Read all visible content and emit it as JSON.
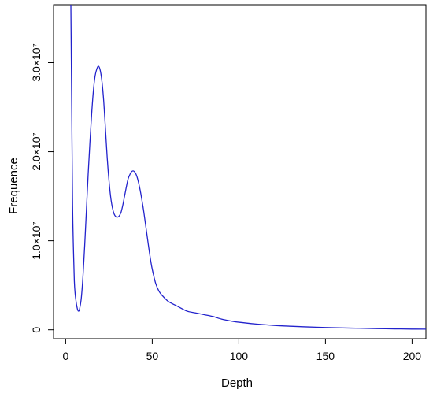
{
  "chart_data": {
    "type": "line",
    "title": "",
    "xlabel": "Depth",
    "ylabel": "Frequence",
    "xlim": [
      -7,
      208
    ],
    "ylim": [
      -1000000,
      36500000
    ],
    "grid": false,
    "legend": "none",
    "x_ticks": [
      {
        "value": 0,
        "label": "0"
      },
      {
        "value": 50,
        "label": "50"
      },
      {
        "value": 100,
        "label": "100"
      },
      {
        "value": 150,
        "label": "150"
      },
      {
        "value": 200,
        "label": "200"
      }
    ],
    "y_ticks": [
      {
        "value": 0,
        "label": "0"
      },
      {
        "value": 10000000,
        "label": "1.0×10⁷"
      },
      {
        "value": 20000000,
        "label": "2.0×10⁷"
      },
      {
        "value": 30000000,
        "label": "3.0×10⁷"
      }
    ],
    "series": [
      {
        "color": "#2222cc",
        "x": [
          3,
          3.5,
          4,
          4.5,
          5,
          5.5,
          6,
          6.5,
          7,
          7.5,
          8,
          9,
          10,
          11,
          12,
          13,
          14,
          15,
          16,
          17,
          18,
          19,
          20,
          21,
          22,
          23,
          24,
          25,
          26,
          27,
          28,
          29,
          30,
          31,
          32,
          33,
          34,
          35,
          36,
          37,
          38,
          39,
          40,
          41,
          42,
          43,
          44,
          45,
          46,
          47,
          48,
          49,
          50,
          52,
          54,
          56,
          58,
          60,
          65,
          70,
          75,
          80,
          85,
          90,
          95,
          100,
          110,
          120,
          130,
          140,
          150,
          160,
          170,
          180,
          190,
          200,
          208
        ],
        "y": [
          36500000,
          25000000,
          14000000,
          9000000,
          5500000,
          4000000,
          3200000,
          2600000,
          2200000,
          2100000,
          2300000,
          3500000,
          6000000,
          9500000,
          13500000,
          17500000,
          21000000,
          24200000,
          26800000,
          28500000,
          29300000,
          29600000,
          29100000,
          27800000,
          25600000,
          22500000,
          19300000,
          16800000,
          14900000,
          13700000,
          13000000,
          12700000,
          12650000,
          12800000,
          13200000,
          14000000,
          15000000,
          16000000,
          16900000,
          17400000,
          17750000,
          17850000,
          17700000,
          17300000,
          16600000,
          15700000,
          14600000,
          13400000,
          12000000,
          10600000,
          9200000,
          7900000,
          6800000,
          5200000,
          4300000,
          3800000,
          3400000,
          3100000,
          2600000,
          2100000,
          1900000,
          1700000,
          1500000,
          1200000,
          1000000,
          850000,
          650000,
          500000,
          400000,
          320000,
          260000,
          210000,
          170000,
          130000,
          100000,
          80000,
          70000
        ]
      }
    ]
  }
}
